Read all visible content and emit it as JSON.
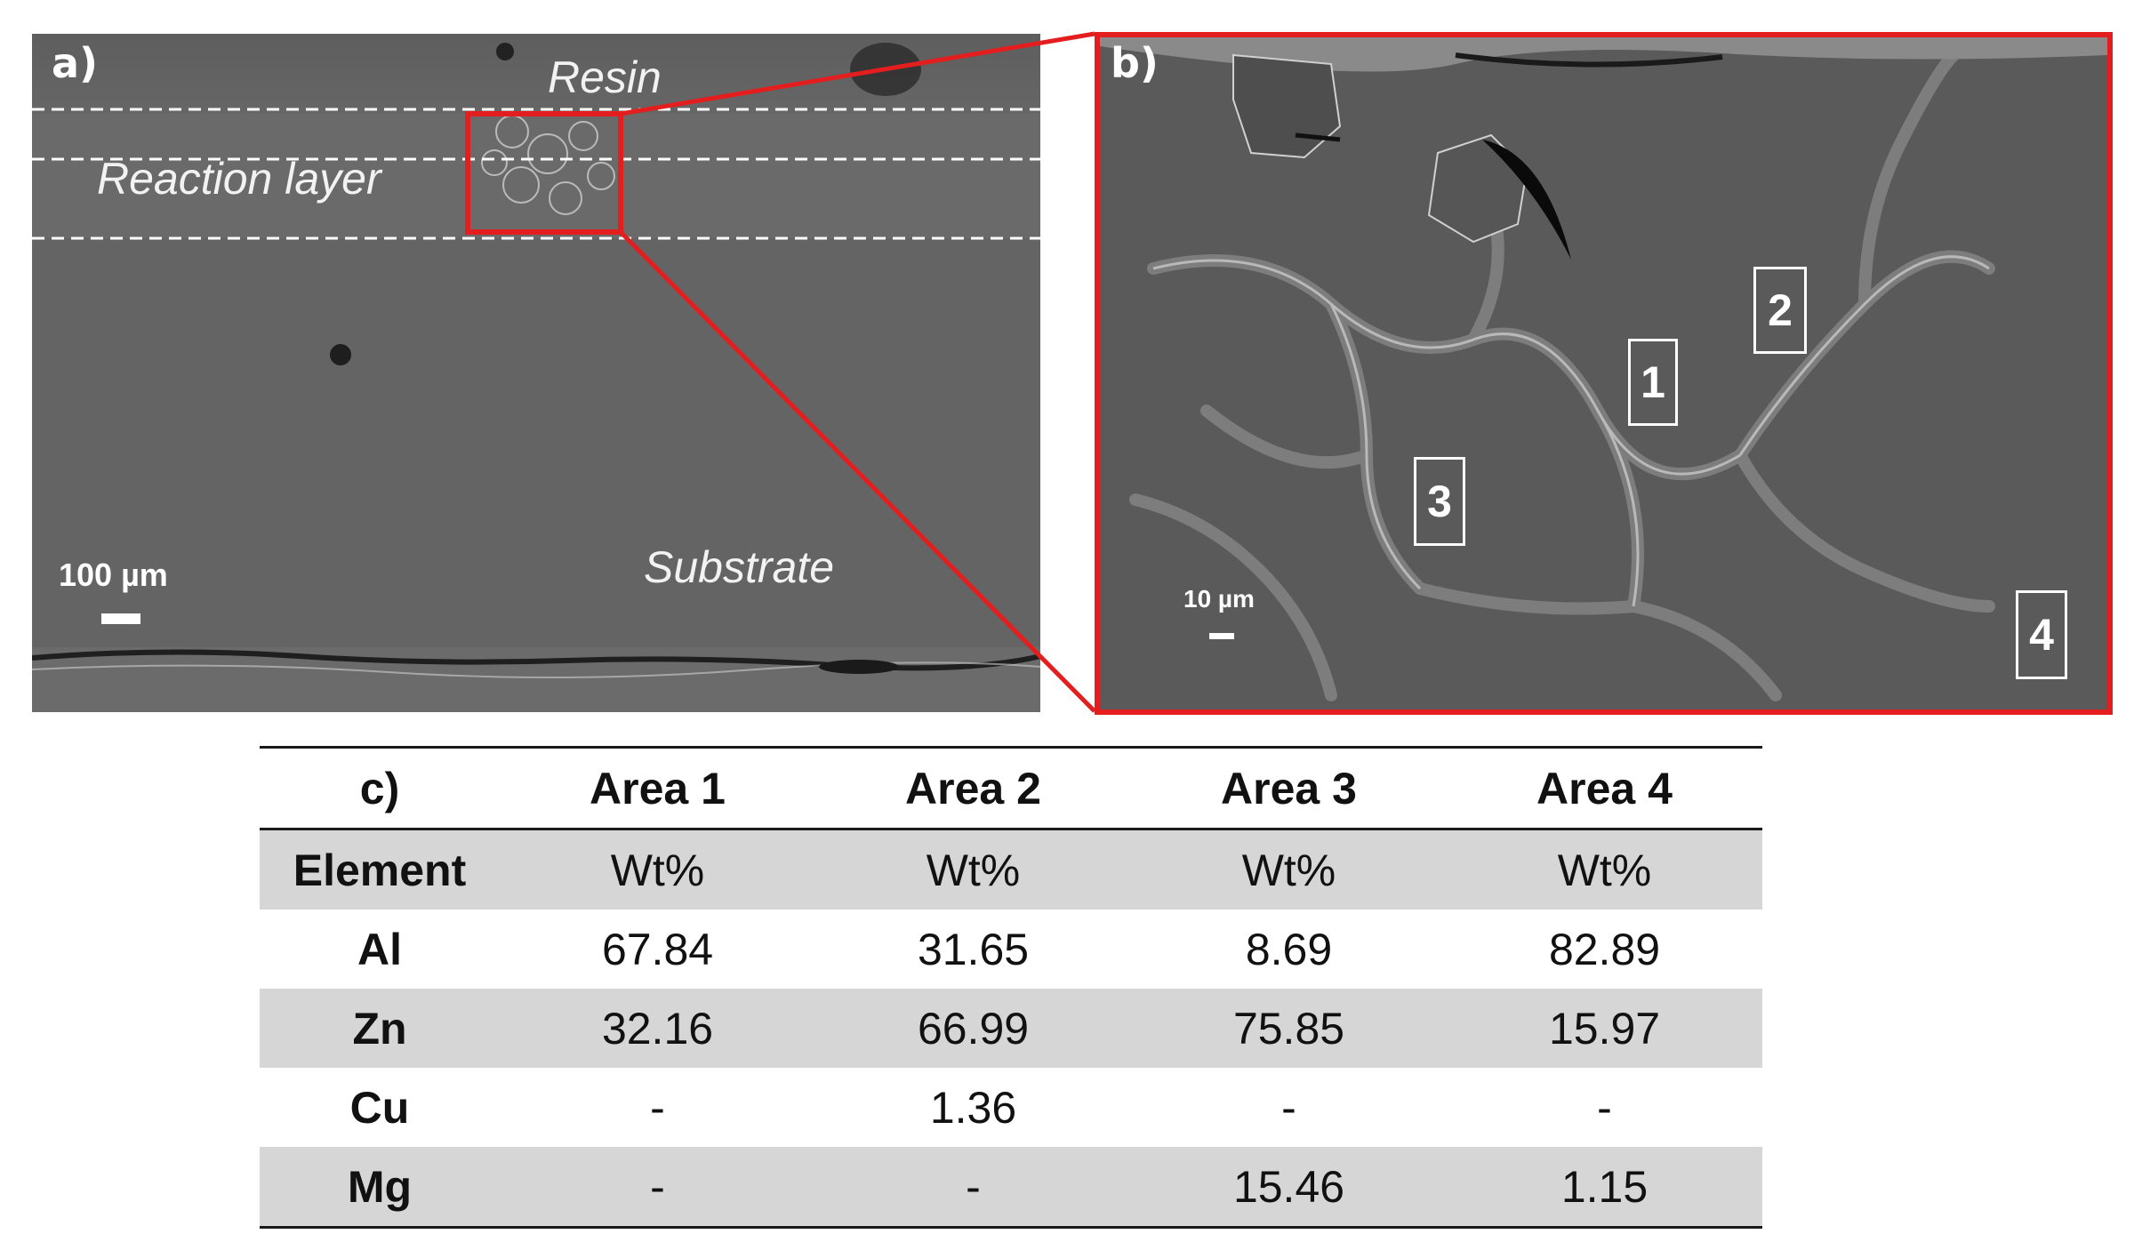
{
  "panel_a": {
    "label": "a)",
    "resin_label": "Resin",
    "reaction_label": "Reaction layer",
    "substrate_label": "Substrate",
    "scale_label": "100 µm"
  },
  "panel_b": {
    "label": "b)",
    "scale_label": "10 µm",
    "areas": [
      "1",
      "2",
      "3",
      "4"
    ]
  },
  "table": {
    "label": "c)",
    "headers": [
      "Area 1",
      "Area 2",
      "Area 3",
      "Area 4"
    ],
    "rows": [
      {
        "element": "Element",
        "values": [
          "Wt%",
          "Wt%",
          "Wt%",
          "Wt%"
        ]
      },
      {
        "element": "Al",
        "values": [
          "67.84",
          "31.65",
          "8.69",
          "82.89"
        ]
      },
      {
        "element": "Zn",
        "values": [
          "32.16",
          "66.99",
          "75.85",
          "15.97"
        ]
      },
      {
        "element": "Cu",
        "values": [
          "-",
          "1.36",
          "-",
          "-"
        ]
      },
      {
        "element": "Mg",
        "values": [
          "-",
          "-",
          "15.46",
          "1.15"
        ]
      }
    ]
  },
  "colors": {
    "highlight": "#e41e1e",
    "row_shade": "#d6d6d6"
  }
}
